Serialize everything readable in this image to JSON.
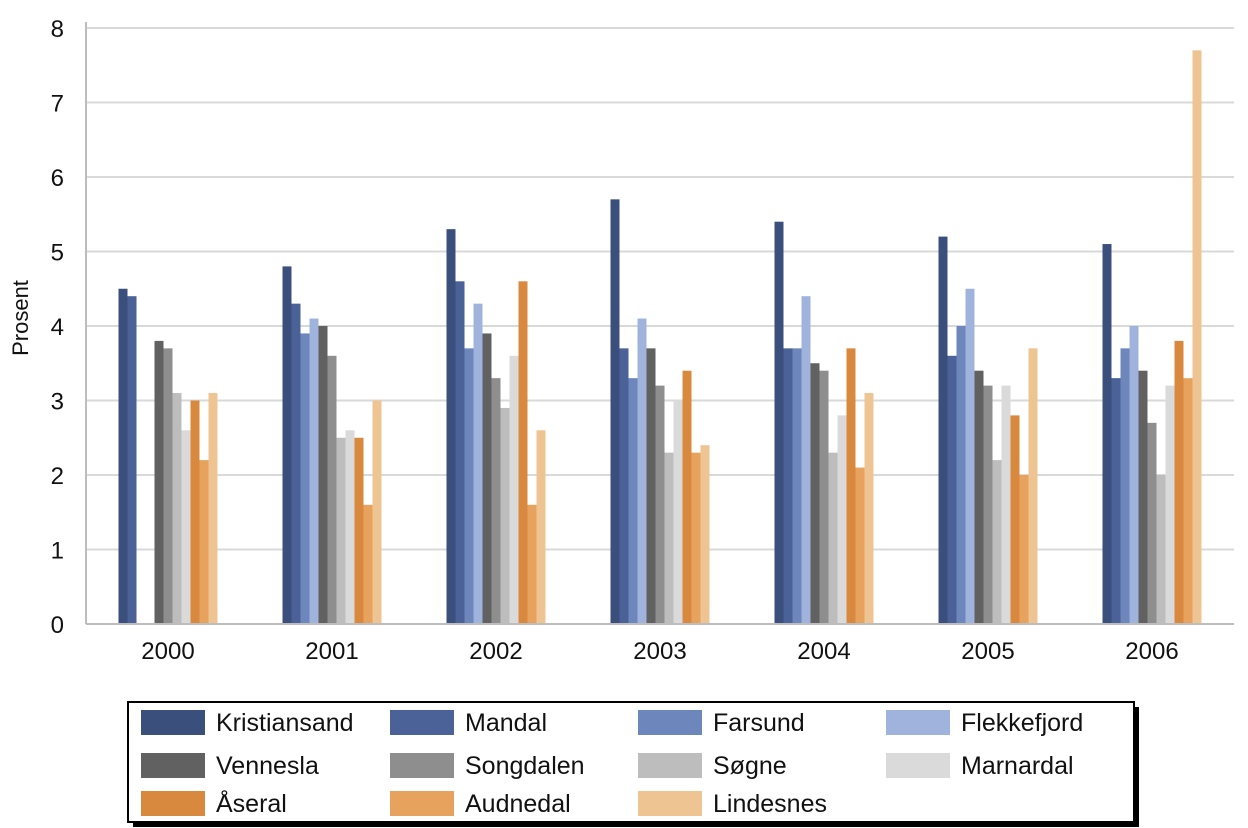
{
  "chart_data": {
    "type": "bar",
    "title": "",
    "xlabel": "",
    "ylabel": "Prosent",
    "ylim": [
      0,
      8
    ],
    "yticks": [
      "0",
      "1",
      "2",
      "3",
      "4",
      "5",
      "6",
      "7",
      "8"
    ],
    "grid": true,
    "legend_position": "bottom",
    "categories": [
      "2000",
      "2001",
      "2002",
      "2003",
      "2004",
      "2005",
      "2006"
    ],
    "series": [
      {
        "name": "Kristiansand",
        "color": "#3b4f7c",
        "values": [
          4.5,
          4.8,
          5.3,
          5.7,
          5.4,
          5.2,
          5.1
        ]
      },
      {
        "name": "Mandal",
        "color": "#4a6297",
        "values": [
          4.4,
          4.3,
          4.6,
          3.7,
          3.7,
          3.6,
          3.3
        ]
      },
      {
        "name": "Farsund",
        "color": "#6d86bb",
        "values": [
          null,
          3.9,
          3.7,
          3.3,
          3.7,
          4.0,
          3.7
        ]
      },
      {
        "name": "Flekkefjord",
        "color": "#a0b3dd",
        "values": [
          null,
          4.1,
          4.3,
          4.1,
          4.4,
          4.5,
          4.0
        ]
      },
      {
        "name": "Vennesla",
        "color": "#616161",
        "values": [
          3.8,
          4.0,
          3.9,
          3.7,
          3.5,
          3.4,
          3.4
        ]
      },
      {
        "name": "Songdalen",
        "color": "#8e8e8e",
        "values": [
          3.7,
          3.6,
          3.3,
          3.2,
          3.4,
          3.2,
          2.7
        ]
      },
      {
        "name": "Søgne",
        "color": "#bdbdbd",
        "values": [
          3.1,
          2.5,
          2.9,
          2.3,
          2.3,
          2.2,
          2.0
        ]
      },
      {
        "name": "Marnardal",
        "color": "#dadada",
        "values": [
          2.6,
          2.6,
          3.6,
          3.0,
          2.8,
          3.2,
          3.2
        ]
      },
      {
        "name": "Åseral",
        "color": "#d8893e",
        "values": [
          3.0,
          2.5,
          4.6,
          3.4,
          3.7,
          2.8,
          3.8
        ]
      },
      {
        "name": "Audnedal",
        "color": "#e7a35d",
        "values": [
          2.2,
          1.6,
          1.6,
          2.3,
          2.1,
          2.0,
          3.3
        ]
      },
      {
        "name": "Lindesnes",
        "color": "#efc493",
        "values": [
          3.1,
          3.0,
          2.6,
          2.4,
          3.1,
          3.7,
          7.7
        ]
      }
    ]
  }
}
